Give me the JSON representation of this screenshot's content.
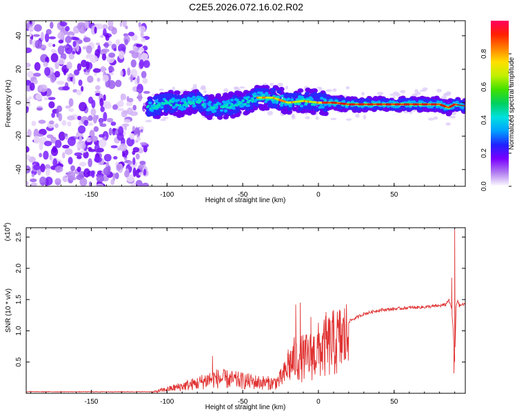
{
  "title": "C2E5.2026.072.16.02.R02",
  "chart_data": [
    {
      "type": "heatmap",
      "title": "C2E5.2026.072.16.02.R02",
      "xlabel": "Height of straight line (km)",
      "ylabel": "Frequency (Hz)",
      "xlim": [
        -193,
        97
      ],
      "ylim": [
        -50,
        49
      ],
      "xticks": [
        -150,
        -100,
        -50,
        0,
        50
      ],
      "yticks": [
        -40,
        -20,
        0,
        20,
        40
      ],
      "colorbar": {
        "label": "Normalized spectral amplitude",
        "range": [
          0,
          1
        ],
        "ticks": [
          "0.0",
          "0.2",
          "0.4",
          "0.6",
          "0.8"
        ],
        "colors": [
          "#ffffff",
          "#b07cf0",
          "#7a00ff",
          "#2020ff",
          "#00a0ff",
          "#00e0e0",
          "#00d060",
          "#40e000",
          "#c0f000",
          "#ffe000",
          "#ff8000",
          "#ff2000",
          "#ff0060"
        ]
      },
      "ridge": {
        "description": "frequency centerline of the return signal (Hz)",
        "x": [
          -112,
          -100,
          -90,
          -80,
          -70,
          -60,
          -50,
          -40,
          -30,
          -20,
          -10,
          0,
          10,
          20,
          40,
          60,
          80,
          86,
          90,
          97
        ],
        "y": [
          -3,
          0,
          -1,
          1,
          -3,
          -2,
          0,
          3,
          3,
          0,
          1,
          0,
          0,
          -1,
          -1,
          -1,
          -1,
          -3,
          -1,
          -2
        ]
      },
      "noise_region_x": [
        -193,
        -113
      ]
    },
    {
      "type": "line",
      "xlabel": "Height of straight line (km)",
      "ylabel": "SNR (10 * v/v)",
      "yscale_label": "(x10",
      "yscale_exp": "4",
      "ymultiplier": 10000,
      "xlim": [
        -193,
        97
      ],
      "ylim": [
        0,
        2.65
      ],
      "xticks": [
        -150,
        -100,
        -50,
        0,
        50
      ],
      "yticks": [
        0.5,
        1.0,
        1.5,
        2.0,
        2.5
      ],
      "ytick_labels": [
        "0.5",
        "1.0",
        "1.5",
        "2.0",
        "2.5"
      ],
      "series_color": "#e03030",
      "envelope": {
        "x": [
          -193,
          -110,
          -100,
          -80,
          -70,
          -60,
          -50,
          -40,
          -30,
          -26,
          -22,
          -20,
          -15,
          -10,
          -5,
          0,
          10,
          20,
          30,
          40,
          50,
          60,
          70,
          80,
          84,
          86,
          88,
          89,
          90,
          91,
          92,
          93,
          95,
          97
        ],
        "y": [
          0.02,
          0.02,
          0.08,
          0.2,
          0.3,
          0.28,
          0.25,
          0.22,
          0.2,
          0.25,
          0.4,
          0.55,
          0.7,
          0.7,
          0.75,
          0.85,
          1.0,
          1.15,
          1.27,
          1.33,
          1.35,
          1.37,
          1.38,
          1.4,
          1.42,
          1.5,
          1.35,
          1.0,
          0.5,
          1.4,
          1.5,
          1.4,
          1.42,
          1.42
        ]
      },
      "peaks": [
        {
          "x": -70,
          "y": 0.6
        },
        {
          "x": -20,
          "y": 0.7
        },
        {
          "x": -15,
          "y": 1.42
        },
        {
          "x": -12,
          "y": 1.45
        },
        {
          "x": -5,
          "y": 1.22
        },
        {
          "x": 5,
          "y": 1.3
        },
        {
          "x": 88,
          "y": 1.85
        },
        {
          "x": 90,
          "y": 2.62
        },
        {
          "x": 89.5,
          "y": 0.32
        }
      ]
    }
  ]
}
